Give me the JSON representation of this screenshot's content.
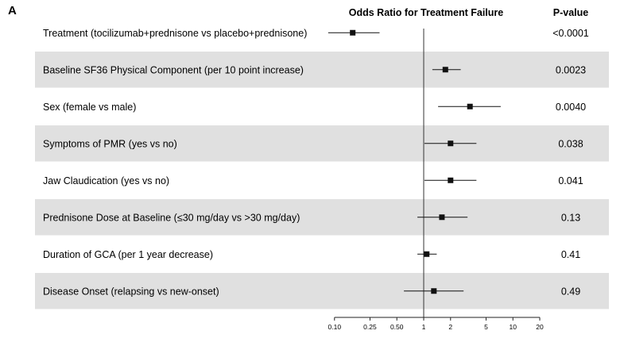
{
  "panel_label": "A",
  "header": {
    "odds_title": "Odds Ratio for Treatment Failure",
    "pvalue_title": "P-value"
  },
  "colors": {
    "band": "#e0e0e0",
    "marker": "#111111",
    "refline": "#333333"
  },
  "chart_data": {
    "type": "forest",
    "title": "Odds Ratio for Treatment Failure",
    "x_scale": "log",
    "xlim": [
      0.1,
      20
    ],
    "reference_line": 1,
    "ticks": [
      {
        "value": 0.1,
        "label": "0.10"
      },
      {
        "value": 0.25,
        "label": "0.25"
      },
      {
        "value": 0.5,
        "label": "0.50"
      },
      {
        "value": 1,
        "label": "1"
      },
      {
        "value": 2,
        "label": "2"
      },
      {
        "value": 5,
        "label": "5"
      },
      {
        "value": 10,
        "label": "10"
      },
      {
        "value": 20,
        "label": "20"
      }
    ],
    "rows": [
      {
        "label": "Treatment (tocilizumab+prednisone vs placebo+prednisone)",
        "or": 0.16,
        "lo": 0.085,
        "hi": 0.32,
        "p": "<0.0001",
        "shaded": false
      },
      {
        "label": "Baseline SF36 Physical Component (per 10 point increase)",
        "or": 1.75,
        "lo": 1.25,
        "hi": 2.6,
        "p": "0.0023",
        "shaded": true
      },
      {
        "label": "Sex (female vs male)",
        "or": 3.3,
        "lo": 1.45,
        "hi": 7.3,
        "p": "0.0040",
        "shaded": false
      },
      {
        "label": "Symptoms of PMR (yes vs no)",
        "or": 2.0,
        "lo": 1.02,
        "hi": 3.9,
        "p": "0.038",
        "shaded": true
      },
      {
        "label": "Jaw Claudication (yes vs no)",
        "or": 2.0,
        "lo": 1.02,
        "hi": 3.9,
        "p": "0.041",
        "shaded": false
      },
      {
        "label": "Prednisone Dose at Baseline (≤30 mg/day vs >30 mg/day)",
        "or": 1.6,
        "lo": 0.85,
        "hi": 3.1,
        "p": "0.13",
        "shaded": true
      },
      {
        "label": "Duration of GCA (per 1 year decrease)",
        "or": 1.08,
        "lo": 0.85,
        "hi": 1.4,
        "p": "0.41",
        "shaded": false
      },
      {
        "label": "Disease Onset (relapsing vs new-onset)",
        "or": 1.3,
        "lo": 0.6,
        "hi": 2.8,
        "p": "0.49",
        "shaded": true
      }
    ]
  }
}
